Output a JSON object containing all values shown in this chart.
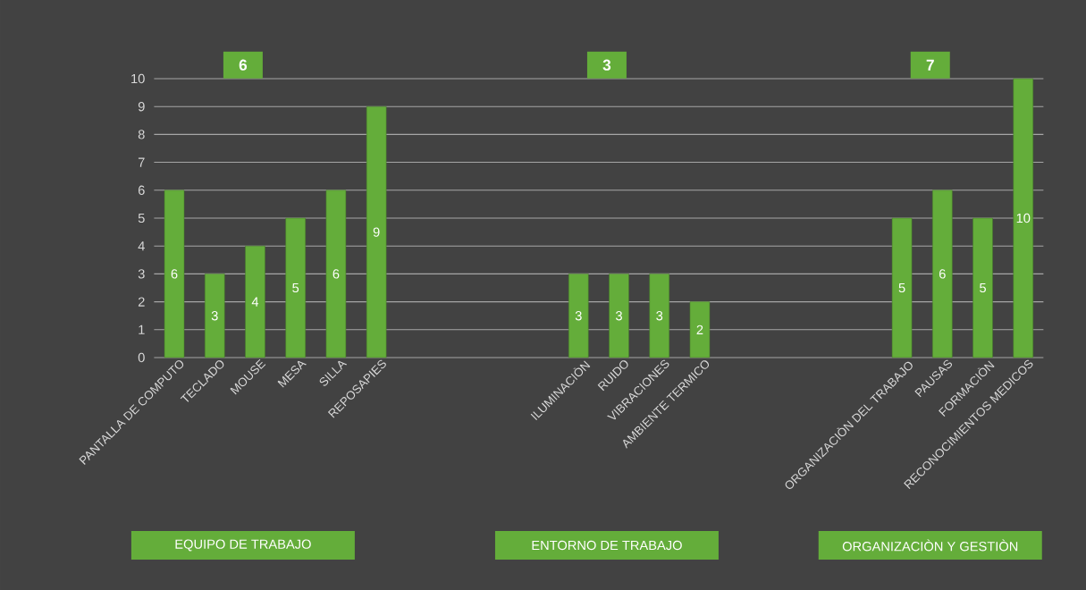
{
  "chart_data": {
    "type": "bar",
    "categories": [
      "PANTALLA DE COMPUTO",
      "TECLADO",
      "MOUSE",
      "MESA",
      "SILLA",
      "REPOSAPIES",
      null,
      null,
      null,
      null,
      "ILUMINACIÒN",
      "RUIDO",
      "VIBRACIONES",
      "AMBIENTE TERMICO",
      null,
      null,
      null,
      null,
      "ORGANIZACIÒN DEL TRABAJO",
      "PAUSAS",
      "FORMACIÒN",
      "RECONOCIMIENTOS MEDICOS"
    ],
    "values": [
      6,
      3,
      4,
      5,
      6,
      9,
      null,
      null,
      null,
      null,
      3,
      3,
      3,
      2,
      null,
      null,
      null,
      null,
      5,
      6,
      5,
      10
    ],
    "color": "#64ad3a",
    "ylim": [
      0,
      10
    ],
    "yticks": [
      0,
      1,
      2,
      3,
      4,
      5,
      6,
      7,
      8,
      9,
      10
    ],
    "grid": "y",
    "data_labels": true,
    "annotations": [
      "6",
      "3",
      "7",
      "EQUIPO DE TRABAJO",
      "ENTORNO DE TRABAJO",
      "ORGANIZACIÒN Y GESTIÒN"
    ]
  }
}
